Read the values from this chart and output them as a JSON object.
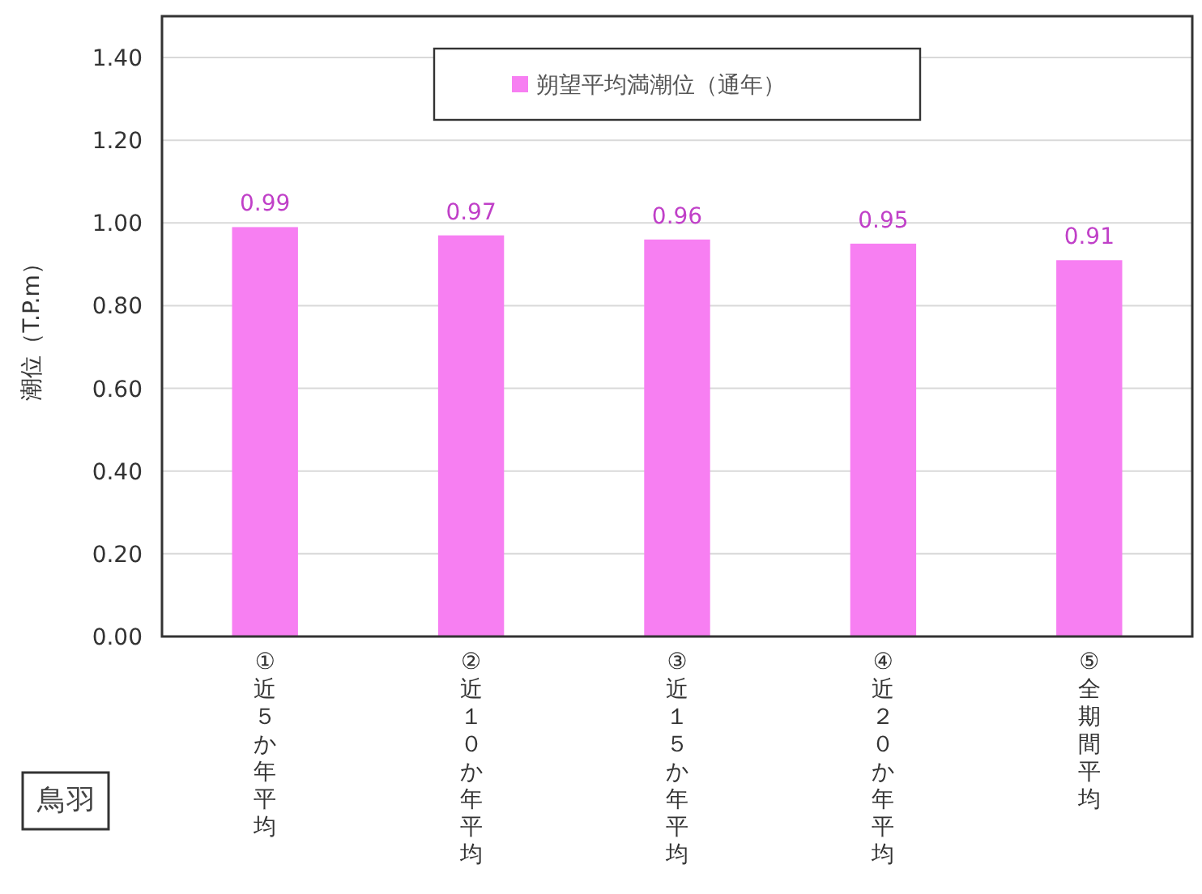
{
  "chart_data": {
    "type": "bar",
    "ylabel": "潮位（T.P.m）",
    "categories": [
      "①近５か年平均",
      "②近１０か年平均",
      "③近１５か年平均",
      "④近２０か年平均",
      "⑤全期間平均"
    ],
    "series": [
      {
        "name": "朔望平均満潮位（通年）",
        "color": "#f77ff2",
        "values": [
          0.99,
          0.97,
          0.96,
          0.95,
          0.91
        ]
      }
    ],
    "ylim": [
      0,
      1.5
    ],
    "yticks": [
      {
        "value": 0,
        "label": "0.00"
      },
      {
        "value": 0.2,
        "label": "0.20"
      },
      {
        "value": 0.4,
        "label": "0.40"
      },
      {
        "value": 0.6,
        "label": "0.60"
      },
      {
        "value": 0.8,
        "label": "0.80"
      },
      {
        "value": 1,
        "label": "1.00"
      },
      {
        "value": 1.2,
        "label": "1.20"
      },
      {
        "value": 1.4,
        "label": "1.40"
      }
    ],
    "grid": "y",
    "legend": "top",
    "data_labels": true,
    "annotations": [
      "鳥羽"
    ]
  }
}
